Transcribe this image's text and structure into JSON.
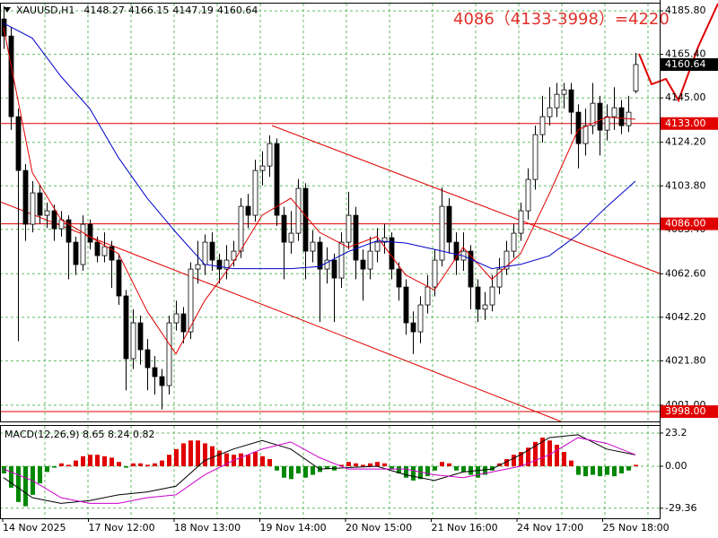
{
  "chart_data": [
    {
      "type": "candlestick",
      "title": "XAUUSD,H1",
      "annotation": "4086（4133-3998）=4220",
      "open": [
        4182.0,
        4174.0,
        4136.2,
        4111.0,
        4085.8,
        4100.5,
        4090.0,
        4092.1,
        4083.7,
        4087.9,
        4077.4,
        4066.9,
        4085.8,
        4077.4,
        4071.1,
        4075.3,
        4069.0,
        4052.2,
        4022.8,
        4039.6,
        4027.0,
        4018.6,
        4014.4,
        4010.2,
        4039.6,
        4043.8,
        4035.4,
        4064.8,
        4066.9,
        4077.4,
        4069.0,
        4064.8,
        4069.0,
        4073.2,
        4094.2,
        4090.0,
        4111.0,
        4113.1,
        4123.6,
        4090.0,
        4077.4,
        4081.6,
        4102.6,
        4073.2,
        4077.4,
        4064.8,
        4069.0,
        4060.6,
        4077.4,
        4090.0,
        4069.0,
        4064.8,
        4073.2,
        4077.4,
        4079.5,
        4064.8,
        4056.4,
        4039.6,
        4035.4,
        4048.0,
        4056.4,
        4069.0,
        4094.2,
        4077.4,
        4069.0,
        4073.2,
        4056.4,
        4046.0,
        4048.0,
        4056.4,
        4064.8,
        4073.2,
        4081.6,
        4092.1,
        4106.8,
        4127.8,
        4136.2,
        4140.4,
        4146.7,
        4148.8,
        4138.3,
        4123.6,
        4132.0,
        4142.5,
        4129.9,
        4136.2,
        4140.4,
        4132.0,
        4148.27
      ],
      "high": [
        4188.0,
        4178.0,
        4140.0,
        4114.0,
        4106.0,
        4104.0,
        4096.0,
        4095.0,
        4092.0,
        4090.0,
        4080.0,
        4090.0,
        4088.0,
        4080.0,
        4082.0,
        4078.0,
        4072.0,
        4055.0,
        4046.0,
        4043.0,
        4032.0,
        4024.0,
        4018.0,
        4043.0,
        4050.0,
        4047.0,
        4068.0,
        4078.0,
        4081.0,
        4082.0,
        4072.0,
        4076.0,
        4078.0,
        4098.0,
        4100.0,
        4116.0,
        4120.0,
        4127.5,
        4126.0,
        4094.0,
        4092.0,
        4107.0,
        4105.0,
        4083.0,
        4080.0,
        4075.0,
        4072.0,
        4082.0,
        4101.0,
        4094.0,
        4074.0,
        4080.0,
        4084.0,
        4086.0,
        4082.0,
        4068.0,
        4060.0,
        4045.0,
        4052.0,
        4062.0,
        4074.0,
        4103.0,
        4098.0,
        4082.0,
        4082.0,
        4076.0,
        4060.0,
        4054.0,
        4062.0,
        4070.0,
        4078.0,
        4086.0,
        4096.0,
        4112.0,
        4132.0,
        4146.0,
        4150.0,
        4152.0,
        4152.0,
        4152.0,
        4142.0,
        4140.0,
        4152.0,
        4146.0,
        4142.0,
        4150.0,
        4144.0,
        4146.0,
        4166.15
      ],
      "low": [
        4168.0,
        4130.0,
        4031.0,
        4078.0,
        4082.0,
        4086.0,
        4084.0,
        4078.0,
        4080.0,
        4060.0,
        4062.0,
        4064.0,
        4074.0,
        4068.0,
        4068.0,
        4056.0,
        4048.0,
        4008.0,
        4018.0,
        4020.0,
        4008.0,
        4006.0,
        3999.0,
        4006.0,
        4036.0,
        4030.0,
        4032.0,
        4058.0,
        4062.0,
        4064.0,
        4058.0,
        4060.0,
        4066.0,
        4070.0,
        4084.0,
        4087.0,
        4104.0,
        4108.0,
        4085.0,
        4060.0,
        4072.0,
        4078.0,
        4060.0,
        4068.0,
        4040.0,
        4058.0,
        4040.0,
        4056.0,
        4074.0,
        4060.0,
        4050.0,
        4060.0,
        4068.0,
        4072.0,
        4060.0,
        4050.0,
        4034.0,
        4025.0,
        4030.0,
        4044.0,
        4052.0,
        4066.0,
        4072.0,
        4062.0,
        4064.0,
        4046.0,
        4040.0,
        4041.0,
        4045.0,
        4053.0,
        4062.0,
        4070.0,
        4078.0,
        4088.0,
        4102.0,
        4124.0,
        4132.0,
        4136.0,
        4140.0,
        4128.0,
        4112.0,
        4118.0,
        4128.0,
        4118.0,
        4125.0,
        4130.0,
        4128.0,
        4129.0,
        4147.19
      ],
      "close": [
        4174.0,
        4136.2,
        4111.0,
        4085.8,
        4100.5,
        4090.0,
        4092.1,
        4083.7,
        4087.9,
        4077.4,
        4066.9,
        4085.8,
        4077.4,
        4071.1,
        4075.3,
        4069.0,
        4052.2,
        4022.8,
        4039.6,
        4027.0,
        4018.6,
        4014.4,
        4010.2,
        4039.6,
        4043.8,
        4035.4,
        4064.8,
        4066.9,
        4077.4,
        4069.0,
        4064.8,
        4069.0,
        4073.2,
        4094.2,
        4090.0,
        4111.0,
        4113.1,
        4123.6,
        4090.0,
        4077.4,
        4081.6,
        4102.6,
        4073.2,
        4077.4,
        4064.8,
        4069.0,
        4060.6,
        4077.4,
        4090.0,
        4069.0,
        4064.8,
        4073.2,
        4077.4,
        4079.5,
        4064.8,
        4056.4,
        4039.6,
        4035.4,
        4048.0,
        4056.4,
        4069.0,
        4094.2,
        4077.4,
        4069.0,
        4073.2,
        4056.4,
        4046.0,
        4048.0,
        4056.4,
        4064.8,
        4073.2,
        4081.6,
        4092.1,
        4106.8,
        4127.8,
        4136.2,
        4140.4,
        4146.7,
        4148.8,
        4138.3,
        4123.6,
        4132.0,
        4142.5,
        4129.9,
        4136.2,
        4140.4,
        4132.0,
        4138.3,
        4160.64
      ],
      "up_color": "#ffffff",
      "down_color": "#000000",
      "ma_index": [
        0,
        4,
        8,
        12,
        16,
        20,
        24,
        28,
        32,
        36,
        40,
        44,
        48,
        52,
        56,
        60,
        64,
        68,
        72,
        76,
        80,
        84,
        88
      ],
      "ma": [
        {
          "color": "#e00000",
          "values": [
            4178,
            4110,
            4088,
            4080,
            4072,
            4045,
            4025,
            4050,
            4068,
            4090,
            4098,
            4082,
            4075,
            4080,
            4062,
            4055,
            4075,
            4060,
            4072,
            4100,
            4130,
            4136,
            4135
          ]
        },
        {
          "color": "#0000cc",
          "values": [
            4180,
            4173,
            4155,
            4140,
            4117,
            4098,
            4082,
            4067,
            4065,
            4065,
            4065,
            4066,
            4073,
            4078,
            4077,
            4074,
            4071,
            4065,
            4067,
            4071,
            4081,
            4094,
            4106
          ]
        }
      ],
      "hlines": [
        {
          "value": 4133,
          "label": "4133.00"
        },
        {
          "value": 4086,
          "label": "4086.00"
        },
        {
          "value": 3998,
          "label": "3998.00"
        }
      ],
      "hline_color": "#e00000",
      "price_box_color": "#000000",
      "ylim": [
        3993.4,
        4189.2
      ],
      "yticks": [
        {
          "value": 4185.8,
          "label": "4185.80"
        },
        {
          "value": 4165.4,
          "label": "4165.40"
        },
        {
          "value": 4145,
          "label": "4145.00"
        },
        {
          "value": 4124.2,
          "label": "4124.20"
        },
        {
          "value": 4103.8,
          "label": "4103.80"
        },
        {
          "value": 4083.4,
          "label": "4083.40"
        },
        {
          "value": 4062.6,
          "label": "4062.60"
        },
        {
          "value": 4042.2,
          "label": "4042.20"
        },
        {
          "value": 4021.8,
          "label": "4021.80"
        },
        {
          "value": 4001,
          "label": "4001.00"
        }
      ],
      "x_labels": [
        "14 Nov 2025",
        "17 Nov 12:00",
        "18 Nov 13:00",
        "19 Nov 14:00",
        "20 Nov 15:00",
        "21 Nov 16:00",
        "24 Nov 17:00",
        "25 Nov 18:00"
      ],
      "grid": true
    },
    {
      "type": "macd",
      "title": "MACD(12,26,9) 8.65 8.24 0.82",
      "histogram": [
        -5,
        -15,
        -25,
        -28,
        -20,
        -12,
        -4,
        -1,
        2,
        1,
        4,
        7,
        8,
        8,
        7,
        6,
        3,
        -1,
        2,
        2,
        1,
        2,
        4,
        8,
        12,
        16,
        18,
        18,
        16,
        14,
        11,
        9,
        8,
        9,
        8,
        10,
        7,
        5,
        -3,
        -8,
        -9,
        -5,
        -8,
        -6,
        -4,
        -2,
        -3,
        1,
        3,
        2,
        1,
        2,
        3,
        2,
        -2,
        -5,
        -8,
        -10,
        -9,
        -7,
        -3,
        3,
        2,
        -3,
        -4,
        -6,
        -8,
        -6,
        -3,
        2,
        5,
        8,
        10,
        13,
        17,
        20,
        18,
        15,
        10,
        4,
        -6,
        -7,
        -6,
        -7,
        -6,
        -7,
        -5,
        -3,
        1
      ],
      "pos_color": "#e00000",
      "neg_color": "#008800",
      "macd": {
        "color": "#000000",
        "values": [
          -8,
          -22,
          -26,
          -24,
          -20,
          -18,
          -14,
          4,
          12,
          18,
          12,
          -2,
          -1,
          0,
          -6,
          -10,
          -4,
          -2,
          8,
          20,
          22,
          12,
          8
        ]
      },
      "signal": {
        "color": "#cc00cc",
        "values": [
          -2,
          -10,
          -22,
          -26,
          -26,
          -22,
          -20,
          -6,
          4,
          12,
          17,
          6,
          -2,
          -2,
          -2,
          -6,
          -8,
          -4,
          0,
          8,
          20,
          16,
          8
        ]
      },
      "ylim": [
        -36.4,
        28.2
      ],
      "yticks": [
        23.2,
        {
          "value": 0,
          "label": "0.00"
        },
        -29.36
      ]
    }
  ]
}
